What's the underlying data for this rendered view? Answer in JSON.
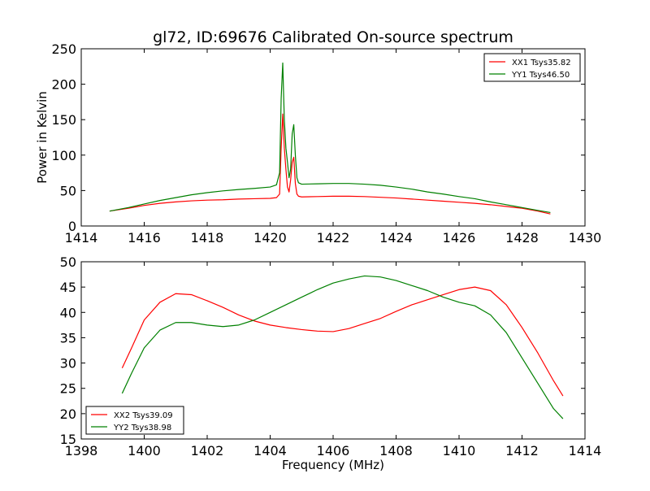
{
  "title": "gl72, ID:69676 Calibrated On-source spectrum",
  "chart_data": [
    {
      "type": "line",
      "ylabel": "Power in Kelvin",
      "xlabel": "",
      "xlim": [
        1414,
        1430
      ],
      "ylim": [
        0,
        250
      ],
      "xticks": [
        "1414",
        "1416",
        "1418",
        "1420",
        "1422",
        "1424",
        "1426",
        "1428",
        "1430"
      ],
      "yticks": [
        "0",
        "50",
        "100",
        "150",
        "200",
        "250"
      ],
      "grid": false,
      "legend_position": "top-right",
      "series": [
        {
          "name": "XX1 Tsys35.82",
          "color": "#ff0000",
          "x": [
            1414.9,
            1415.5,
            1416.0,
            1416.5,
            1417.0,
            1417.5,
            1418.0,
            1418.5,
            1419.0,
            1419.5,
            1420.0,
            1420.2,
            1420.3,
            1420.35,
            1420.4,
            1420.45,
            1420.5,
            1420.55,
            1420.6,
            1420.65,
            1420.7,
            1420.75,
            1420.8,
            1420.85,
            1420.9,
            1421.0,
            1421.5,
            1422.0,
            1422.5,
            1423.0,
            1423.5,
            1424.0,
            1424.5,
            1425.0,
            1425.5,
            1426.0,
            1426.5,
            1427.0,
            1427.5,
            1428.0,
            1428.5,
            1428.9
          ],
          "y": [
            21,
            25,
            29,
            32,
            34,
            35.5,
            36.5,
            37,
            38,
            38.5,
            39,
            40,
            45,
            110,
            158,
            110,
            80,
            55,
            48,
            65,
            90,
            97,
            60,
            45,
            42,
            41,
            41.5,
            42,
            42,
            41.5,
            40.5,
            39.5,
            38,
            36.5,
            35,
            33.5,
            32,
            30,
            27.5,
            25,
            21,
            17
          ]
        },
        {
          "name": "YY1 Tsys46.50",
          "color": "#008000",
          "x": [
            1414.9,
            1415.5,
            1416.0,
            1416.5,
            1417.0,
            1417.5,
            1418.0,
            1418.5,
            1419.0,
            1419.5,
            1420.0,
            1420.2,
            1420.3,
            1420.35,
            1420.4,
            1420.45,
            1420.5,
            1420.55,
            1420.6,
            1420.65,
            1420.7,
            1420.75,
            1420.8,
            1420.85,
            1420.9,
            1421.0,
            1421.5,
            1422.0,
            1422.5,
            1423.0,
            1423.5,
            1424.0,
            1424.5,
            1425.0,
            1425.5,
            1426.0,
            1426.5,
            1427.0,
            1427.5,
            1428.0,
            1428.5,
            1428.9
          ],
          "y": [
            21,
            26,
            31,
            36,
            40,
            44,
            47,
            49.5,
            51.5,
            53,
            55,
            58,
            75,
            180,
            230,
            150,
            110,
            90,
            68,
            80,
            130,
            143,
            100,
            68,
            61,
            59,
            59.5,
            60,
            60,
            59,
            57.5,
            55,
            52,
            48,
            45,
            41.5,
            38.5,
            34,
            30,
            26,
            22,
            19
          ]
        }
      ]
    },
    {
      "type": "line",
      "ylabel": "",
      "xlabel": "Frequency (MHz)",
      "xlim": [
        1398,
        1414
      ],
      "ylim": [
        15,
        50
      ],
      "xticks": [
        "1398",
        "1400",
        "1402",
        "1404",
        "1406",
        "1408",
        "1410",
        "1412",
        "1414"
      ],
      "yticks": [
        "15",
        "20",
        "25",
        "30",
        "35",
        "40",
        "45",
        "50"
      ],
      "grid": false,
      "legend_position": "bottom-left",
      "series": [
        {
          "name": "XX2 Tsys39.09",
          "color": "#ff0000",
          "x": [
            1399.3,
            1399.6,
            1400.0,
            1400.5,
            1401.0,
            1401.5,
            1402.0,
            1402.5,
            1403.0,
            1403.5,
            1404.0,
            1404.5,
            1405.0,
            1405.5,
            1406.0,
            1406.5,
            1407.0,
            1407.5,
            1408.0,
            1408.5,
            1409.0,
            1409.5,
            1410.0,
            1410.5,
            1411.0,
            1411.5,
            1412.0,
            1412.5,
            1413.0,
            1413.3
          ],
          "y": [
            29,
            33,
            38.5,
            42,
            43.7,
            43.5,
            42.3,
            41,
            39.5,
            38.3,
            37.5,
            37,
            36.6,
            36.3,
            36.2,
            36.8,
            37.8,
            38.8,
            40.2,
            41.5,
            42.5,
            43.5,
            44.5,
            45,
            44.3,
            41.5,
            37,
            32,
            26.5,
            23.5
          ]
        },
        {
          "name": "YY2 Tsys38.98",
          "color": "#008000",
          "x": [
            1399.3,
            1399.6,
            1400.0,
            1400.5,
            1401.0,
            1401.5,
            1402.0,
            1402.5,
            1403.0,
            1403.5,
            1404.0,
            1404.5,
            1405.0,
            1405.5,
            1406.0,
            1406.5,
            1407.0,
            1407.5,
            1408.0,
            1408.5,
            1409.0,
            1409.5,
            1410.0,
            1410.5,
            1411.0,
            1411.5,
            1412.0,
            1412.5,
            1413.0,
            1413.3
          ],
          "y": [
            24,
            28,
            33,
            36.5,
            38,
            38,
            37.5,
            37.2,
            37.5,
            38.5,
            40,
            41.5,
            43,
            44.5,
            45.8,
            46.6,
            47.2,
            47,
            46.3,
            45.3,
            44.3,
            43,
            42,
            41.3,
            39.5,
            36,
            31,
            26,
            21,
            19
          ]
        }
      ]
    }
  ]
}
